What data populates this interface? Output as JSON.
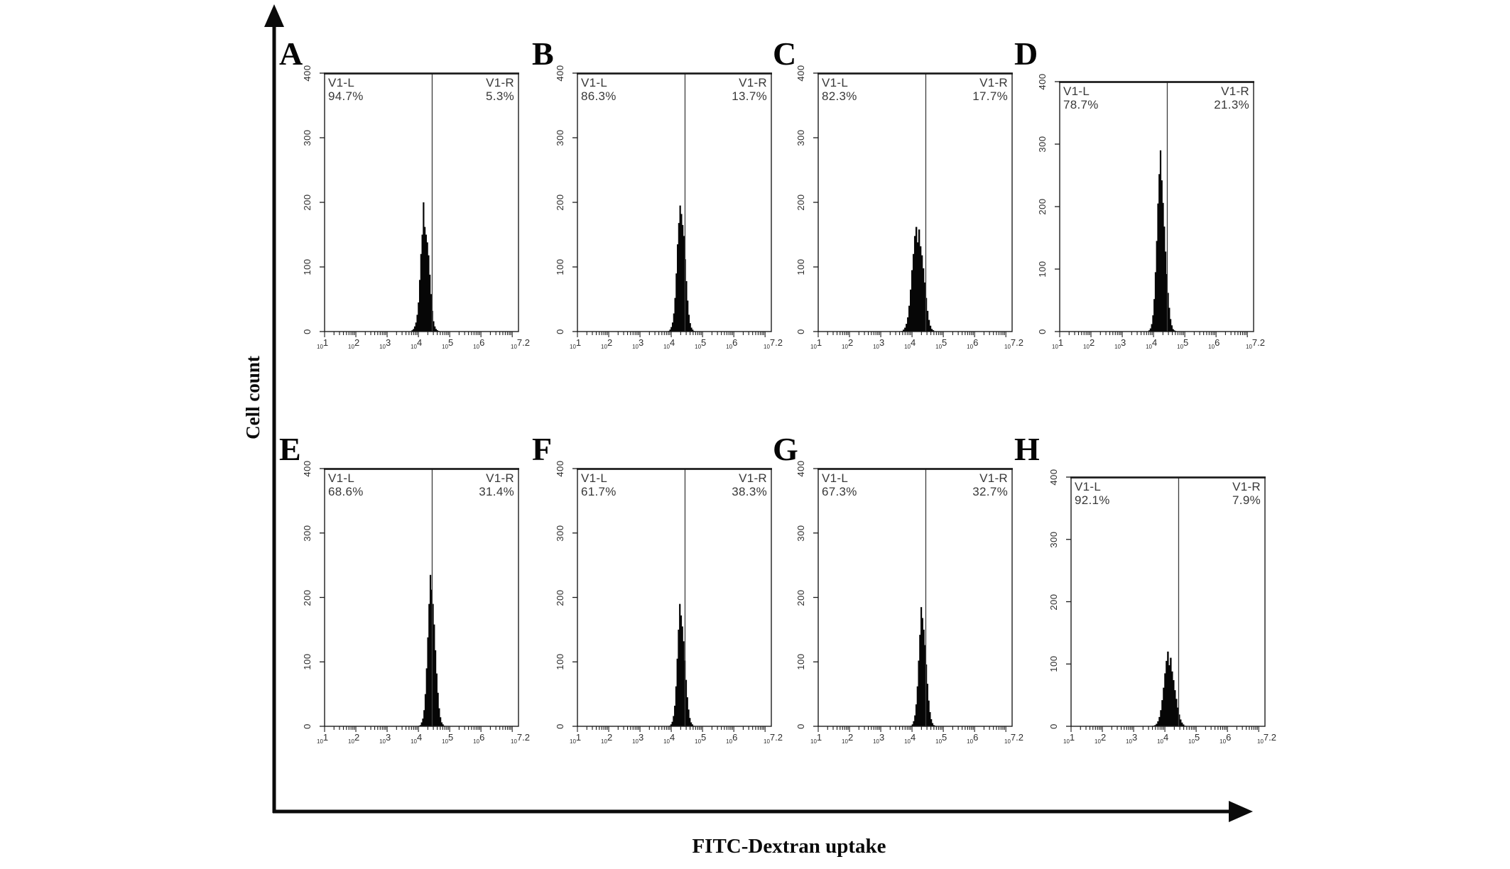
{
  "chart_data": {
    "type": "bar",
    "subtype": "flow-cytometry-histogram-grid",
    "grid": "2 rows x 4 columns",
    "x_scale": "log10",
    "x_axis": {
      "label": "FITC-Dextran uptake",
      "range_log10": [
        1,
        7.2
      ],
      "tick_base": "10",
      "tick_exponents": [
        "1",
        "2",
        "3",
        "4",
        "5",
        "6",
        "7.2"
      ]
    },
    "y_axis": {
      "label": "Cell count",
      "range": [
        0,
        400
      ],
      "ticks": [
        "0",
        "100",
        "200",
        "300",
        "400"
      ]
    },
    "gate": {
      "position_log10": 4.44,
      "left_label": "V1-L",
      "right_label": "V1-R"
    },
    "panels": [
      {
        "label": "A",
        "v1l": "94.7%",
        "v1r": "5.3%",
        "peak_count": 200,
        "bars_start_log10": 3.78,
        "bars_step_log10": 0.04,
        "bars": [
          2,
          4,
          8,
          14,
          26,
          45,
          80,
          120,
          150,
          200,
          162,
          150,
          138,
          118,
          88,
          58,
          32,
          16,
          8,
          4,
          2,
          1
        ]
      },
      {
        "label": "B",
        "v1l": "86.3%",
        "v1r": "13.7%",
        "peak_count": 195,
        "bars_start_log10": 3.9,
        "bars_step_log10": 0.04,
        "bars": [
          1,
          3,
          7,
          14,
          28,
          52,
          90,
          135,
          168,
          195,
          182,
          165,
          148,
          112,
          78,
          48,
          26,
          13,
          6,
          3,
          1
        ]
      },
      {
        "label": "C",
        "v1l": "82.3%",
        "v1r": "17.7%",
        "peak_count": 162,
        "bars_start_log10": 3.66,
        "bars_step_log10": 0.045,
        "bars": [
          1,
          3,
          6,
          12,
          22,
          40,
          65,
          95,
          120,
          148,
          162,
          138,
          158,
          132,
          118,
          98,
          76,
          52,
          32,
          18,
          9,
          4,
          2
        ]
      },
      {
        "label": "D",
        "v1l": "78.7%",
        "v1r": "21.3%",
        "peak_count": 290,
        "bars_start_log10": 3.84,
        "bars_step_log10": 0.04,
        "bars": [
          2,
          5,
          12,
          26,
          52,
          95,
          145,
          205,
          252,
          290,
          242,
          206,
          168,
          128,
          92,
          62,
          38,
          20,
          10,
          4,
          2,
          1
        ]
      },
      {
        "label": "E",
        "v1l": "68.6%",
        "v1r": "31.4%",
        "peak_count": 235,
        "bars_start_log10": 4.0,
        "bars_step_log10": 0.04,
        "bars": [
          1,
          2,
          6,
          12,
          25,
          50,
          90,
          138,
          190,
          235,
          212,
          190,
          158,
          118,
          82,
          52,
          28,
          14,
          6,
          3,
          1
        ]
      },
      {
        "label": "F",
        "v1l": "61.7%",
        "v1r": "38.3%",
        "peak_count": 190,
        "bars_start_log10": 3.93,
        "bars_step_log10": 0.04,
        "bars": [
          1,
          3,
          7,
          16,
          32,
          62,
          105,
          150,
          190,
          172,
          155,
          132,
          102,
          72,
          45,
          26,
          13,
          6,
          3,
          1
        ]
      },
      {
        "label": "G",
        "v1l": "67.3%",
        "v1r": "32.7%",
        "peak_count": 185,
        "bars_start_log10": 3.95,
        "bars_step_log10": 0.04,
        "bars": [
          1,
          3,
          8,
          17,
          34,
          62,
          102,
          142,
          185,
          168,
          150,
          126,
          96,
          66,
          40,
          22,
          11,
          5,
          2,
          1
        ]
      },
      {
        "label": "H",
        "v1l": "92.1%",
        "v1r": "7.9%",
        "peak_count": 120,
        "bars_start_log10": 3.62,
        "bars_step_log10": 0.045,
        "bars": [
          1,
          2,
          4,
          8,
          15,
          26,
          42,
          62,
          85,
          105,
          120,
          98,
          110,
          88,
          74,
          58,
          44,
          30,
          19,
          11,
          6,
          3,
          1
        ]
      }
    ]
  },
  "colors": {
    "histogram_fill": "#060606",
    "axis_line": "#0b0b0b",
    "panel_border": "#1c1c1c",
    "gate_line": "#3c3c3c",
    "text": "#2e2e2e",
    "background": "#ffffff"
  }
}
